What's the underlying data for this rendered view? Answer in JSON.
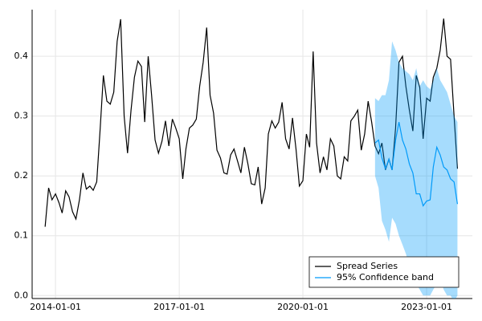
{
  "chart_data": {
    "type": "line",
    "xlim": [
      "2013-06-08",
      "2024-02-10"
    ],
    "xticks": [
      "2014-01-01",
      "2017-01-01",
      "2020-01-01",
      "2023-01-01"
    ],
    "ylim": [
      -0.005,
      0.478
    ],
    "yticks": [
      {
        "value": 0,
        "label": "0.0"
      },
      0.1,
      0.2,
      0.3,
      0.4
    ],
    "grid": true,
    "legend": "bottom right",
    "series": [
      {
        "name": "Spread Series",
        "color": "#000000",
        "x": [
          "2013-10-01",
          "2013-11-01",
          "2013-12-01",
          "2014-01-01",
          "2014-02-01",
          "2014-03-01",
          "2014-04-01",
          "2014-05-01",
          "2014-06-01",
          "2014-07-01",
          "2014-08-01",
          "2014-09-01",
          "2014-10-01",
          "2014-11-01",
          "2014-12-01",
          "2015-01-01",
          "2015-02-01",
          "2015-03-01",
          "2015-04-01",
          "2015-05-01",
          "2015-06-01",
          "2015-07-01",
          "2015-08-01",
          "2015-09-01",
          "2015-10-01",
          "2015-11-01",
          "2015-12-01",
          "2016-01-01",
          "2016-02-01",
          "2016-03-01",
          "2016-04-01",
          "2016-05-01",
          "2016-06-01",
          "2016-07-01",
          "2016-08-01",
          "2016-09-01",
          "2016-10-01",
          "2016-11-01",
          "2016-12-01",
          "2017-01-01",
          "2017-02-01",
          "2017-03-01",
          "2017-04-01",
          "2017-05-01",
          "2017-06-01",
          "2017-07-01",
          "2017-08-01",
          "2017-09-01",
          "2017-10-01",
          "2017-11-01",
          "2017-12-01",
          "2018-01-01",
          "2018-02-01",
          "2018-03-01",
          "2018-04-01",
          "2018-05-01",
          "2018-06-01",
          "2018-07-01",
          "2018-08-01",
          "2018-09-01",
          "2018-10-01",
          "2018-11-01",
          "2018-12-01",
          "2019-01-01",
          "2019-02-01",
          "2019-03-01",
          "2019-04-01",
          "2019-05-01",
          "2019-06-01",
          "2019-07-01",
          "2019-08-01",
          "2019-09-01",
          "2019-10-01",
          "2019-11-01",
          "2019-12-01",
          "2020-01-01",
          "2020-02-01",
          "2020-03-01",
          "2020-04-01",
          "2020-05-01",
          "2020-06-01",
          "2020-07-01",
          "2020-08-01",
          "2020-09-01",
          "2020-10-01",
          "2020-11-01",
          "2020-12-01",
          "2021-01-01",
          "2021-02-01",
          "2021-03-01",
          "2021-04-01",
          "2021-05-01",
          "2021-06-01",
          "2021-07-01",
          "2021-08-01",
          "2021-09-01",
          "2021-10-01",
          "2021-11-01",
          "2021-12-01",
          "2022-01-01",
          "2022-02-01",
          "2022-03-01",
          "2022-04-01",
          "2022-05-01",
          "2022-06-01",
          "2022-07-01",
          "2022-08-01",
          "2022-09-01",
          "2022-10-01",
          "2022-11-01",
          "2022-12-01",
          "2023-01-01",
          "2023-02-01",
          "2023-03-01",
          "2023-04-01",
          "2023-05-01",
          "2023-06-01",
          "2023-07-01",
          "2023-08-01",
          "2023-09-01",
          "2023-10-01"
        ],
        "values": [
          0.115,
          0.18,
          0.16,
          0.17,
          0.155,
          0.138,
          0.175,
          0.165,
          0.14,
          0.128,
          0.16,
          0.205,
          0.178,
          0.183,
          0.176,
          0.19,
          0.28,
          0.368,
          0.325,
          0.32,
          0.34,
          0.425,
          0.462,
          0.3,
          0.238,
          0.31,
          0.365,
          0.392,
          0.383,
          0.29,
          0.4,
          0.335,
          0.26,
          0.238,
          0.258,
          0.292,
          0.25,
          0.295,
          0.28,
          0.262,
          0.195,
          0.245,
          0.28,
          0.285,
          0.295,
          0.35,
          0.39,
          0.448,
          0.335,
          0.305,
          0.243,
          0.23,
          0.205,
          0.203,
          0.235,
          0.245,
          0.225,
          0.205,
          0.248,
          0.22,
          0.187,
          0.185,
          0.215,
          0.153,
          0.18,
          0.27,
          0.292,
          0.28,
          0.29,
          0.323,
          0.262,
          0.245,
          0.297,
          0.245,
          0.183,
          0.192,
          0.27,
          0.248,
          0.408,
          0.255,
          0.205,
          0.232,
          0.21,
          0.262,
          0.25,
          0.2,
          0.195,
          0.232,
          0.225,
          0.292,
          0.3,
          0.31,
          0.243,
          0.27,
          0.325,
          0.29,
          0.25,
          0.237,
          0.255,
          0.21,
          0.228,
          0.21,
          0.28,
          0.39,
          0.4,
          0.35,
          0.31,
          0.275,
          0.368,
          0.348,
          0.262,
          0.33,
          0.325,
          0.365,
          0.38,
          0.41,
          0.463,
          0.4,
          0.395,
          0.3,
          0.212
        ]
      },
      {
        "name": "95% Confidence band",
        "color": "#009af9",
        "x": [
          "2021-10-01",
          "2021-11-01",
          "2021-12-01",
          "2022-01-01",
          "2022-02-01",
          "2022-03-01",
          "2022-04-01",
          "2022-05-01",
          "2022-06-01",
          "2022-07-01",
          "2022-08-01",
          "2022-09-01",
          "2022-10-01",
          "2022-11-01",
          "2022-12-01",
          "2023-01-01",
          "2023-02-01",
          "2023-03-01",
          "2023-04-01",
          "2023-05-01",
          "2023-06-01",
          "2023-07-01",
          "2023-08-01",
          "2023-09-01",
          "2023-10-01"
        ],
        "values": [
          0.255,
          0.26,
          0.23,
          0.212,
          0.228,
          0.21,
          0.26,
          0.29,
          0.26,
          0.245,
          0.22,
          0.205,
          0.17,
          0.17,
          0.15,
          0.158,
          0.16,
          0.215,
          0.248,
          0.235,
          0.215,
          0.21,
          0.195,
          0.19,
          0.153
        ],
        "lower": [
          0.2,
          0.18,
          0.125,
          0.11,
          0.09,
          0.13,
          0.12,
          0.1,
          0.085,
          0.07,
          0.05,
          0.04,
          0.02,
          0.01,
          0.0,
          0.0,
          0.0,
          0.01,
          0.02,
          0.03,
          0.01,
          0.0,
          0.0,
          -0.01,
          0.0
        ],
        "upper": [
          0.33,
          0.325,
          0.335,
          0.335,
          0.36,
          0.425,
          0.41,
          0.39,
          0.38,
          0.375,
          0.37,
          0.36,
          0.38,
          0.35,
          0.36,
          0.35,
          0.345,
          0.36,
          0.38,
          0.36,
          0.35,
          0.34,
          0.32,
          0.3,
          0.29
        ]
      }
    ]
  }
}
